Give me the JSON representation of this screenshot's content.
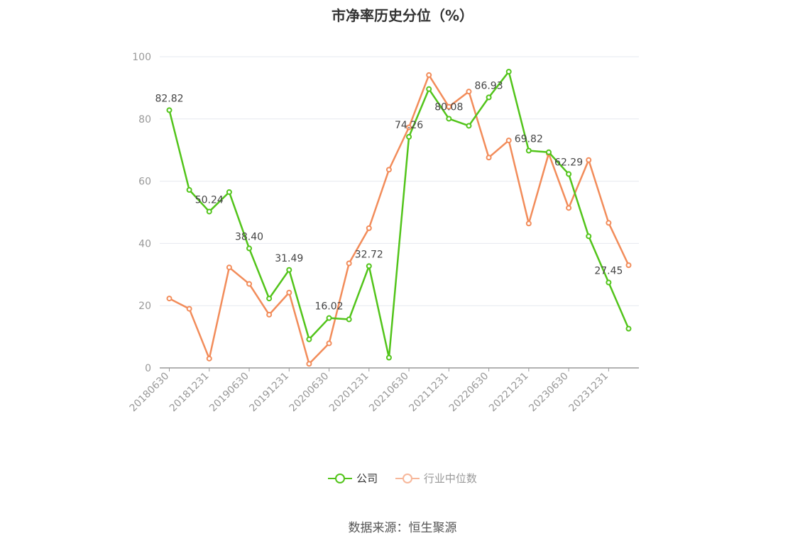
{
  "chart_data": {
    "type": "line",
    "title": "市净率历史分位（%）",
    "source": "数据来源：恒生聚源",
    "x": [
      "20180630",
      "20180930",
      "20181231",
      "20190331",
      "20190630",
      "20190930",
      "20191231",
      "20200331",
      "20200630",
      "20200930",
      "20201231",
      "20210331",
      "20210630",
      "20210930",
      "20211231",
      "20220331",
      "20220630",
      "20220930",
      "20221231",
      "20230331",
      "20230630",
      "20230930",
      "20231231",
      "20240331"
    ],
    "x_tick_labels": [
      "20180630",
      "20181231",
      "20190630",
      "20191231",
      "20200630",
      "20201231",
      "20210630",
      "20211231",
      "20220630",
      "20221231",
      "20230630",
      "20231231"
    ],
    "ylim": [
      0,
      100
    ],
    "y_ticks": [
      0,
      20,
      40,
      60,
      80,
      100
    ],
    "grid": true,
    "legend_position": "bottom",
    "series": [
      {
        "name": "公司",
        "color": "#52c41a",
        "values": [
          82.82,
          57.2,
          50.24,
          56.5,
          38.4,
          22.3,
          31.49,
          9.2,
          16.02,
          15.6,
          32.72,
          3.3,
          74.26,
          89.6,
          80.08,
          77.8,
          86.93,
          95.2,
          69.82,
          69.3,
          62.29,
          42.3,
          27.45,
          12.6
        ],
        "labels": {
          "0": "82.82",
          "2": "50.24",
          "4": "38.40",
          "6": "31.49",
          "8": "16.02",
          "10": "32.72",
          "12": "74.26",
          "14": "80.08",
          "16": "86.93",
          "18": "69.82",
          "20": "62.29",
          "22": "27.45"
        }
      },
      {
        "name": "行业中位数",
        "color": "#f28c5a",
        "values": [
          22.3,
          19.0,
          3.0,
          32.3,
          27.0,
          17.1,
          24.2,
          1.3,
          7.9,
          33.6,
          44.9,
          63.7,
          77.3,
          94.1,
          83.9,
          88.8,
          67.6,
          73.1,
          46.4,
          68.9,
          51.4,
          66.8,
          46.6,
          33.0
        ]
      }
    ]
  }
}
